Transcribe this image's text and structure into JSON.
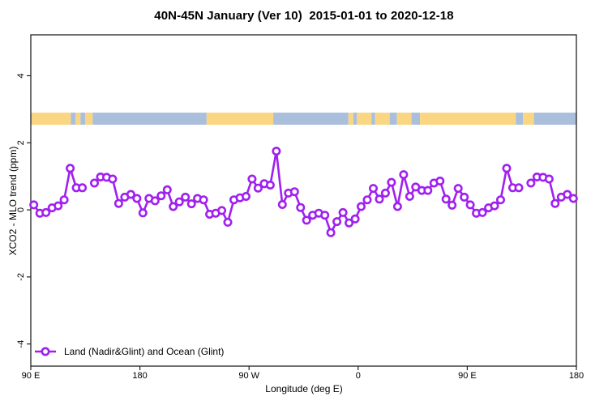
{
  "title": "40N-45N January (Ver 10)  2015-01-01 to 2020-12-18",
  "legend": {
    "entries": [
      {
        "label": "Land (Nadir&Glint) and Ocean (Glint)",
        "color": "#A020F0"
      }
    ]
  },
  "chart_data": {
    "type": "line",
    "title": "40N-45N January (Ver 10)  2015-01-01 to 2020-12-18",
    "xlabel": "Longitude (deg E)",
    "ylabel": "XCO2 - MLO trend (ppm)",
    "xlim": [
      90,
      540
    ],
    "ylim": [
      -4.66,
      5.22
    ],
    "grid": false,
    "legend_position": "bottom-left",
    "bin_width_deg": 5,
    "x_ticks": [
      {
        "lon": 90,
        "label": "90 E"
      },
      {
        "lon": 180,
        "label": "180"
      },
      {
        "lon": 270,
        "label": "90 W"
      },
      {
        "lon": 360,
        "label": "0"
      },
      {
        "lon": 450,
        "label": "90 E"
      },
      {
        "lon": 540,
        "label": "180"
      }
    ],
    "y_ticks": [
      {
        "value": 4,
        "label": "4"
      },
      {
        "value": 2,
        "label": "2"
      },
      {
        "value": 0,
        "label": "0"
      },
      {
        "value": -2,
        "label": "-2"
      },
      {
        "value": -4,
        "label": "-4"
      }
    ],
    "series": [
      {
        "name": "Land (Nadir&Glint) and Ocean (Glint)",
        "color": "#A020F0",
        "marker": "open-circle",
        "points": [
          [
            92.5,
            0.15
          ],
          [
            97.5,
            -0.1
          ],
          [
            102.5,
            -0.08
          ],
          [
            107.5,
            0.06
          ],
          [
            112.5,
            0.12
          ],
          [
            117.5,
            0.3
          ],
          [
            122.5,
            1.24
          ],
          [
            127.5,
            0.66
          ],
          [
            132.5,
            0.66
          ],
          [
            142.5,
            0.8
          ],
          [
            147.5,
            0.98
          ],
          [
            152.5,
            0.97
          ],
          [
            157.5,
            0.92
          ],
          [
            162.5,
            0.19
          ],
          [
            167.5,
            0.38
          ],
          [
            172.5,
            0.46
          ],
          [
            177.5,
            0.34
          ],
          [
            182.5,
            -0.09
          ],
          [
            187.5,
            0.34
          ],
          [
            192.5,
            0.27
          ],
          [
            197.5,
            0.42
          ],
          [
            202.5,
            0.6
          ],
          [
            207.5,
            0.1
          ],
          [
            212.5,
            0.24
          ],
          [
            217.5,
            0.38
          ],
          [
            222.5,
            0.18
          ],
          [
            227.5,
            0.34
          ],
          [
            232.5,
            0.3
          ],
          [
            237.5,
            -0.13
          ],
          [
            242.5,
            -0.1
          ],
          [
            247.5,
            -0.02
          ],
          [
            252.5,
            -0.37
          ],
          [
            257.5,
            0.3
          ],
          [
            262.5,
            0.36
          ],
          [
            267.5,
            0.4
          ],
          [
            272.5,
            0.92
          ],
          [
            277.5,
            0.65
          ],
          [
            282.5,
            0.78
          ],
          [
            287.5,
            0.74
          ],
          [
            292.5,
            1.75
          ],
          [
            297.5,
            0.16
          ],
          [
            302.5,
            0.5
          ],
          [
            307.5,
            0.54
          ],
          [
            312.5,
            0.07
          ],
          [
            317.5,
            -0.31
          ],
          [
            322.5,
            -0.16
          ],
          [
            327.5,
            -0.1
          ],
          [
            332.5,
            -0.16
          ],
          [
            337.5,
            -0.68
          ],
          [
            342.5,
            -0.35
          ],
          [
            347.5,
            -0.08
          ],
          [
            352.5,
            -0.39
          ],
          [
            357.5,
            -0.27
          ],
          [
            362.5,
            0.1
          ],
          [
            367.5,
            0.3
          ],
          [
            372.5,
            0.64
          ],
          [
            377.5,
            0.32
          ],
          [
            382.5,
            0.5
          ],
          [
            387.5,
            0.82
          ],
          [
            392.5,
            0.1
          ],
          [
            397.5,
            1.05
          ],
          [
            402.5,
            0.4
          ],
          [
            407.5,
            0.68
          ],
          [
            412.5,
            0.58
          ],
          [
            417.5,
            0.58
          ],
          [
            422.5,
            0.8
          ],
          [
            427.5,
            0.86
          ],
          [
            432.5,
            0.32
          ],
          [
            437.5,
            0.14
          ],
          [
            442.5,
            0.64
          ],
          [
            447.5,
            0.38
          ],
          [
            452.5,
            0.15
          ],
          [
            457.5,
            -0.1
          ],
          [
            462.5,
            -0.08
          ],
          [
            467.5,
            0.06
          ],
          [
            472.5,
            0.12
          ],
          [
            477.5,
            0.3
          ],
          [
            482.5,
            1.24
          ],
          [
            487.5,
            0.66
          ],
          [
            492.5,
            0.66
          ],
          [
            502.5,
            0.8
          ],
          [
            507.5,
            0.98
          ],
          [
            512.5,
            0.97
          ],
          [
            517.5,
            0.92
          ],
          [
            522.5,
            0.19
          ],
          [
            527.5,
            0.38
          ],
          [
            532.5,
            0.46
          ],
          [
            537.5,
            0.34
          ]
        ],
        "gaps_at": [
          137.5,
          497.5
        ]
      }
    ],
    "land_ocean_strip": {
      "value_range": [
        2.54,
        2.9
      ],
      "land_color": "#FBD682",
      "ocean_color": "#A9BFDC",
      "segments": [
        {
          "from": 90,
          "to": 123,
          "surface": "land"
        },
        {
          "from": 123,
          "to": 127,
          "surface": "ocean"
        },
        {
          "from": 127,
          "to": 131,
          "surface": "land"
        },
        {
          "from": 131,
          "to": 135,
          "surface": "ocean"
        },
        {
          "from": 135,
          "to": 141,
          "surface": "land"
        },
        {
          "from": 141,
          "to": 235,
          "surface": "ocean"
        },
        {
          "from": 235,
          "to": 290,
          "surface": "land"
        },
        {
          "from": 290,
          "to": 352,
          "surface": "ocean"
        },
        {
          "from": 352,
          "to": 356,
          "surface": "land"
        },
        {
          "from": 356,
          "to": 359,
          "surface": "ocean"
        },
        {
          "from": 359,
          "to": 371,
          "surface": "land"
        },
        {
          "from": 371,
          "to": 374,
          "surface": "ocean"
        },
        {
          "from": 374,
          "to": 386,
          "surface": "land"
        },
        {
          "from": 386,
          "to": 392,
          "surface": "ocean"
        },
        {
          "from": 392,
          "to": 404,
          "surface": "land"
        },
        {
          "from": 404,
          "to": 411,
          "surface": "ocean"
        },
        {
          "from": 411,
          "to": 490,
          "surface": "land"
        },
        {
          "from": 490,
          "to": 496,
          "surface": "ocean"
        },
        {
          "from": 496,
          "to": 505,
          "surface": "land"
        },
        {
          "from": 505,
          "to": 540,
          "surface": "ocean"
        }
      ]
    }
  }
}
